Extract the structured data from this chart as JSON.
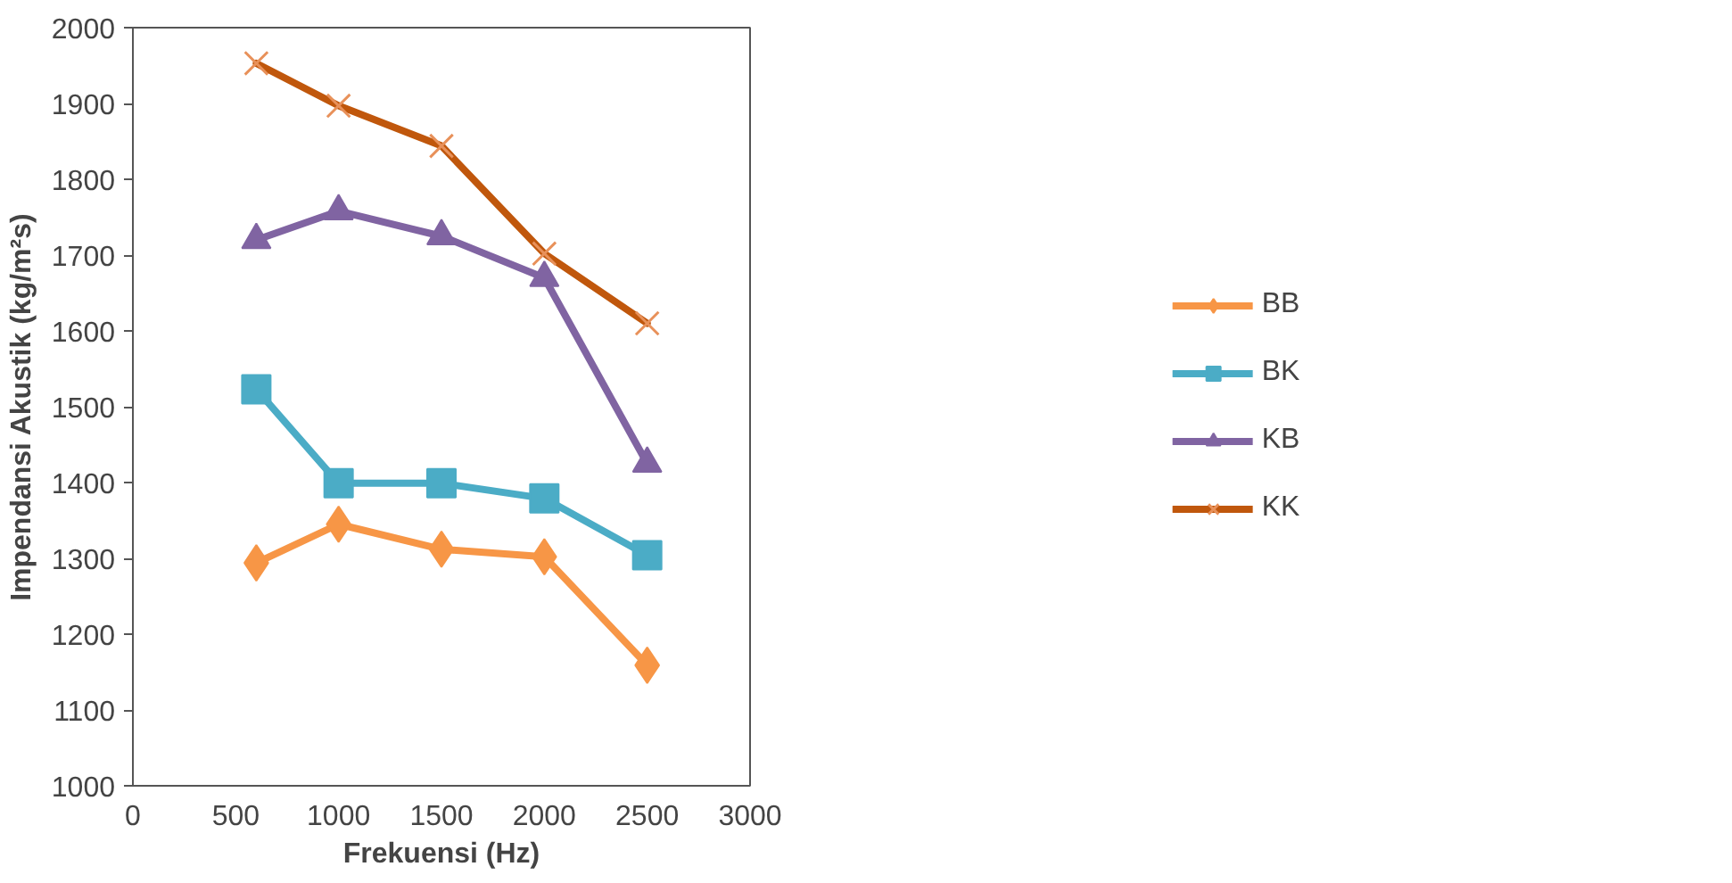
{
  "chart_data": {
    "type": "line",
    "xlabel": "Frekuensi (Hz)",
    "ylabel": "Impendansi Akustik (kg/m²s)",
    "x": [
      600,
      1000,
      1500,
      2000,
      2500
    ],
    "series": [
      {
        "name": "BB",
        "color": "#f79646",
        "marker": "diamond",
        "values": [
          1294,
          1345,
          1312,
          1302,
          1159
        ]
      },
      {
        "name": "BK",
        "color": "#4bacc6",
        "marker": "square",
        "values": [
          1523,
          1399,
          1399,
          1379,
          1304
        ]
      },
      {
        "name": "KB",
        "color": "#8064a2",
        "marker": "triangle",
        "values": [
          1720,
          1758,
          1725,
          1670,
          1425
        ]
      },
      {
        "name": "KK",
        "color": "#c0570c",
        "marker": "cross",
        "values": [
          1953,
          1897,
          1844,
          1702,
          1610
        ]
      }
    ],
    "xlim": [
      0,
      3000
    ],
    "xticks": [
      0,
      500,
      1000,
      1500,
      2000,
      2500,
      3000
    ],
    "ylim": [
      1000,
      2000
    ],
    "yticks": [
      1000,
      1100,
      1200,
      1300,
      1400,
      1500,
      1600,
      1700,
      1800,
      1900,
      2000
    ],
    "grid": false,
    "legend": "right",
    "line_style": "solid"
  }
}
